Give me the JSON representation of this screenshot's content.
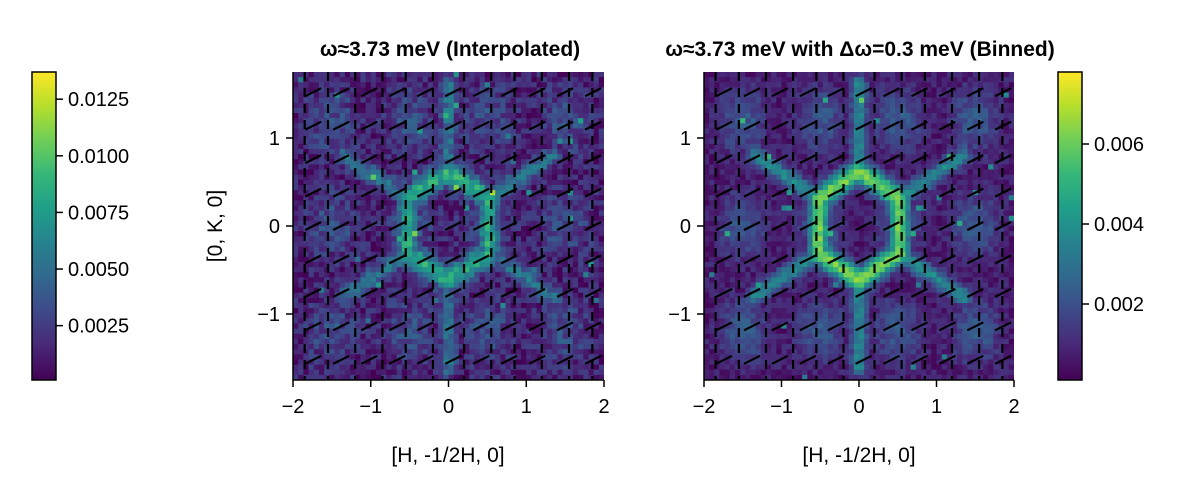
{
  "colormap": [
    "#440154",
    "#482878",
    "#3e4989",
    "#31688e",
    "#26828e",
    "#1f9e89",
    "#35b779",
    "#6ece58",
    "#b5de2b",
    "#fde725"
  ],
  "chart_data": [
    {
      "type": "heatmap",
      "title": "ω≈3.73 meV (Interpolated)",
      "xlabel": "[H, -1/2H, 0]",
      "ylabel": "[0, K, 0]",
      "xlim": [
        -2,
        2
      ],
      "ylim": [
        -1.75,
        1.75
      ],
      "xticks": [
        -2,
        -1,
        0,
        1,
        2
      ],
      "xtick_labels": [
        "−2",
        "−1",
        "0",
        "1",
        "2"
      ],
      "yticks": [
        -1,
        0,
        1
      ],
      "ytick_labels": [
        "−1",
        "0",
        "1"
      ],
      "colorbar": {
        "position": "left",
        "range": [
          0.0001,
          0.0137
        ],
        "ticks": [
          0.0025,
          0.005,
          0.0075,
          0.01,
          0.0125
        ],
        "tick_labels": [
          "0.0025",
          "0.0050",
          "0.0075",
          "0.0100",
          "0.0125"
        ]
      },
      "overlay": "dashed black Brillouin zone boundaries",
      "intensity_peak": 0.0135
    },
    {
      "type": "heatmap",
      "title": "ω≈3.73 meV with Δω=0.3 meV (Binned)",
      "xlabel": "[H, -1/2H, 0]",
      "ylabel": "",
      "xlim": [
        -2,
        2
      ],
      "ylim": [
        -1.75,
        1.75
      ],
      "xticks": [
        -2,
        -1,
        0,
        1,
        2
      ],
      "xtick_labels": [
        "−2",
        "−1",
        "0",
        "1",
        "2"
      ],
      "yticks": [
        -1,
        0,
        1
      ],
      "ytick_labels": [
        "−1",
        "0",
        "1"
      ],
      "colorbar": {
        "position": "right",
        "range": [
          0.0001,
          0.0078
        ],
        "ticks": [
          0.002,
          0.004,
          0.006
        ],
        "tick_labels": [
          "0.002",
          "0.004",
          "0.006"
        ]
      },
      "overlay": "dashed black Brillouin zone boundaries",
      "intensity_peak": 0.0075
    }
  ]
}
